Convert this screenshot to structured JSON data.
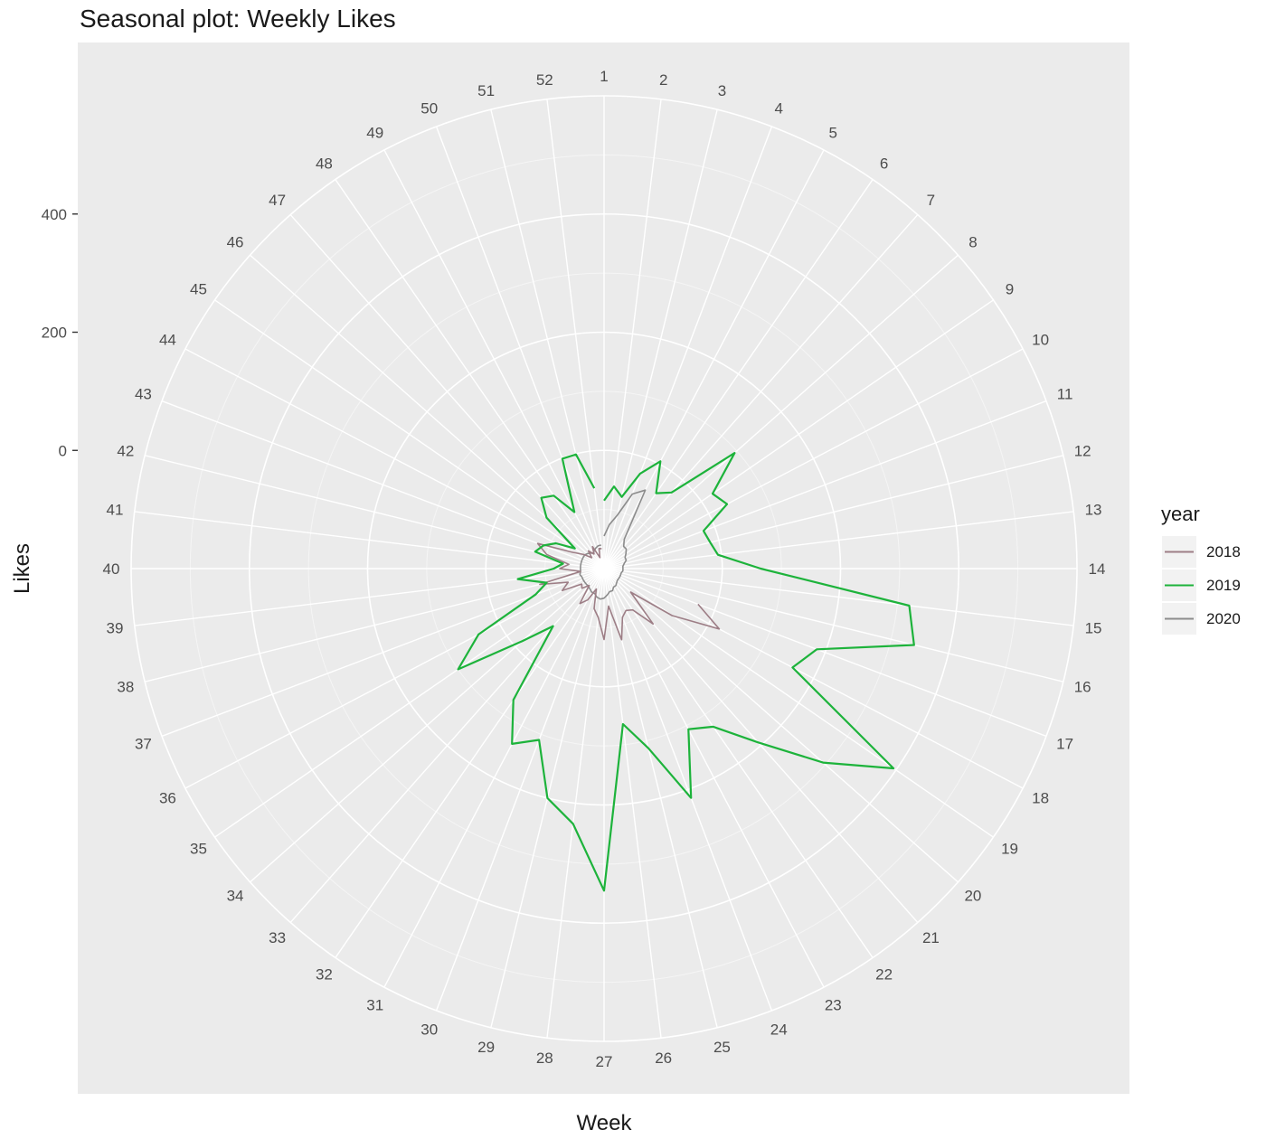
{
  "chart_data": {
    "type": "line",
    "coord": "polar",
    "title": "Seasonal plot: Weekly Likes",
    "xlabel": "Week",
    "ylabel": "Likes",
    "yticks": [
      0,
      200,
      400
    ],
    "ylim": [
      -200,
      600
    ],
    "x_categories": [
      1,
      2,
      3,
      4,
      5,
      6,
      7,
      8,
      9,
      10,
      11,
      12,
      13,
      14,
      15,
      16,
      17,
      18,
      19,
      20,
      21,
      22,
      23,
      24,
      25,
      26,
      27,
      28,
      29,
      30,
      31,
      32,
      33,
      34,
      35,
      36,
      37,
      38,
      39,
      40,
      41,
      42,
      43,
      44,
      45,
      46,
      47,
      48,
      49,
      50,
      51,
      52
    ],
    "legend": {
      "title": "year",
      "position": "right"
    },
    "grid": true,
    "series": [
      {
        "name": "2018",
        "color": "#9d7e86",
        "x": [
          17,
          18,
          19,
          20,
          21,
          22,
          23,
          24,
          25,
          26,
          27,
          28,
          29,
          30,
          31,
          32,
          33,
          34,
          35,
          36,
          37,
          38,
          39,
          40,
          41,
          42,
          43,
          44,
          45,
          46,
          47,
          48,
          49,
          50,
          51,
          52
        ],
        "values": [
          -30,
          20,
          -60,
          -140,
          -75,
          -115,
          -120,
          -112,
          -76,
          -136,
          -80,
          -117,
          -130,
          -163,
          -140,
          -128,
          -162,
          -150,
          -154,
          -120,
          -135,
          -88,
          -160,
          -125,
          -140,
          -100,
          -80,
          -141,
          -158,
          -172,
          -160,
          -170,
          -158,
          -180,
          -165,
          -166
        ]
      },
      {
        "name": "2019",
        "color": "#1db33b",
        "x": [
          1,
          2,
          3,
          4,
          5,
          6,
          7,
          8,
          9,
          10,
          11,
          12,
          13,
          14,
          15,
          16,
          17,
          18,
          19,
          20,
          21,
          22,
          23,
          24,
          25,
          26,
          27,
          28,
          29,
          30,
          31,
          32,
          33,
          34,
          35,
          36,
          37,
          38,
          39,
          40,
          41,
          42,
          43,
          44,
          45,
          46,
          47,
          48,
          49,
          50,
          51,
          52
        ],
        "values": [
          -85,
          -60,
          -75,
          -28,
          5,
          -45,
          -28,
          95,
          23,
          35,
          -20,
          -15,
          -6,
          65,
          320,
          340,
          185,
          160,
          395,
          295,
          193,
          125,
          107,
          215,
          113,
          65,
          345,
          235,
          200,
          110,
          135,
          70,
          -70,
          -15,
          100,
          40,
          -76,
          -100,
          -53,
          -115,
          -130,
          -80,
          -90,
          -108,
          -140,
          -70,
          -40,
          -50,
          -92,
          -1,
          -1,
          -63
        ]
      },
      {
        "name": "2020",
        "color": "#8c8c8c",
        "x": [
          1,
          2,
          3,
          4,
          5,
          6,
          7,
          8,
          9,
          10,
          11,
          12,
          13,
          14,
          15,
          16,
          17,
          18,
          19,
          20,
          21,
          22,
          23,
          24,
          25,
          26,
          27,
          28,
          29,
          30,
          31,
          32,
          33,
          34,
          35,
          36,
          37,
          38,
          39,
          40,
          41,
          42,
          43,
          44,
          45,
          46,
          47,
          48,
          49,
          50,
          51,
          52
        ],
        "values": [
          -145,
          -125,
          -107,
          -65,
          -50,
          -140,
          -150,
          -150,
          -155,
          -160,
          -160,
          -165,
          -168,
          -168,
          -168,
          -170,
          -170,
          -170,
          -170,
          -170,
          -168,
          -165,
          -165,
          -160,
          -160,
          -155,
          -150,
          -148,
          -150,
          -155,
          -155,
          -158,
          -160,
          -160,
          -160,
          -160,
          -160,
          -158,
          -160,
          -160,
          -160,
          -160,
          -160,
          -160,
          -160,
          -162,
          -165,
          -168,
          -165,
          -162,
          -160,
          -160
        ]
      }
    ]
  }
}
